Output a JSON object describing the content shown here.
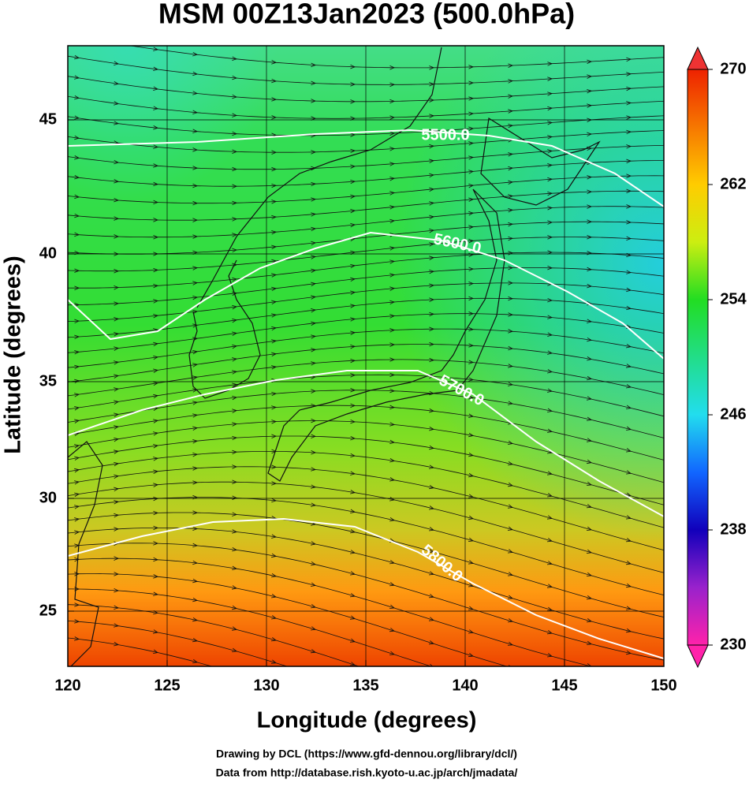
{
  "title": "MSM 00Z13Jan2023 (500.0hPa)",
  "x_label": "Longitude (degrees)",
  "y_label": "Latitude  (degrees)",
  "xticks": [
    120,
    125,
    130,
    135,
    140,
    145,
    150
  ],
  "yticks": [
    45,
    40,
    35,
    30,
    25
  ],
  "colorbar_ticks": [
    270,
    262,
    254,
    246,
    238,
    230
  ],
  "contour_labels": [
    "5500.0",
    "5600.0",
    "5700.0",
    "5800.0"
  ],
  "credits": [
    "Drawing by DCL (https://www.gfd-dennou.org/library/dcl/)",
    "Data from http://database.rish.kyoto-u.ac.jp/arch/jmadata/"
  ]
}
